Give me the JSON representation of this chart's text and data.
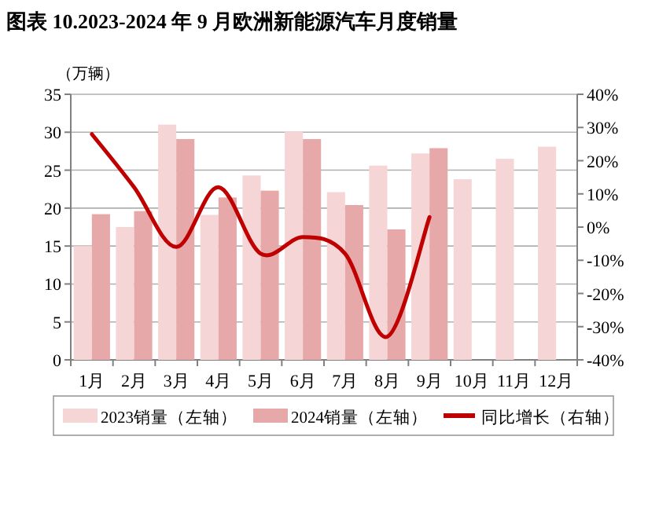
{
  "chart_data": {
    "type": "bar",
    "title": "图表 10.2023-2024 年 9 月欧洲新能源汽车月度销量",
    "ylabel": "（万辆）",
    "categories": [
      "1月",
      "2月",
      "3月",
      "4月",
      "5月",
      "6月",
      "7月",
      "8月",
      "9月",
      "10月",
      "11月",
      "12月"
    ],
    "series": [
      {
        "name": "2023销量（左轴）",
        "color": "#f5d5d5",
        "values": [
          15,
          17.5,
          31,
          19.1,
          24.3,
          30.1,
          22.1,
          25.6,
          27.2,
          23.8,
          26.5,
          28.1
        ]
      },
      {
        "name": "2024销量（左轴）",
        "color": "#e6a8a8",
        "values": [
          19.2,
          19.6,
          29.1,
          21.4,
          22.3,
          29.1,
          20.4,
          17.2,
          27.9,
          null,
          null,
          null
        ]
      },
      {
        "name": "同比增长（右轴）",
        "type": "line",
        "axis": "y2",
        "color": "#c00000",
        "values": [
          28,
          12,
          -6,
          12,
          -8,
          -3,
          -8,
          -33,
          3,
          null,
          null,
          null
        ]
      }
    ],
    "ylim": [
      0,
      35
    ],
    "yticks": [
      0,
      5,
      10,
      15,
      20,
      25,
      30,
      35
    ],
    "y2lim": [
      -40,
      40
    ],
    "y2ticks": [
      {
        "value": -40,
        "label": "-40%"
      },
      {
        "value": -30,
        "label": "-30%"
      },
      {
        "value": -20,
        "label": "-20%"
      },
      {
        "value": -10,
        "label": "-10%"
      },
      {
        "value": 0,
        "label": "0%"
      },
      {
        "value": 10,
        "label": "10%"
      },
      {
        "value": 20,
        "label": "20%"
      },
      {
        "value": 30,
        "label": "30%"
      },
      {
        "value": 40,
        "label": "40%"
      }
    ],
    "grid": "y",
    "legend": "bottom"
  }
}
